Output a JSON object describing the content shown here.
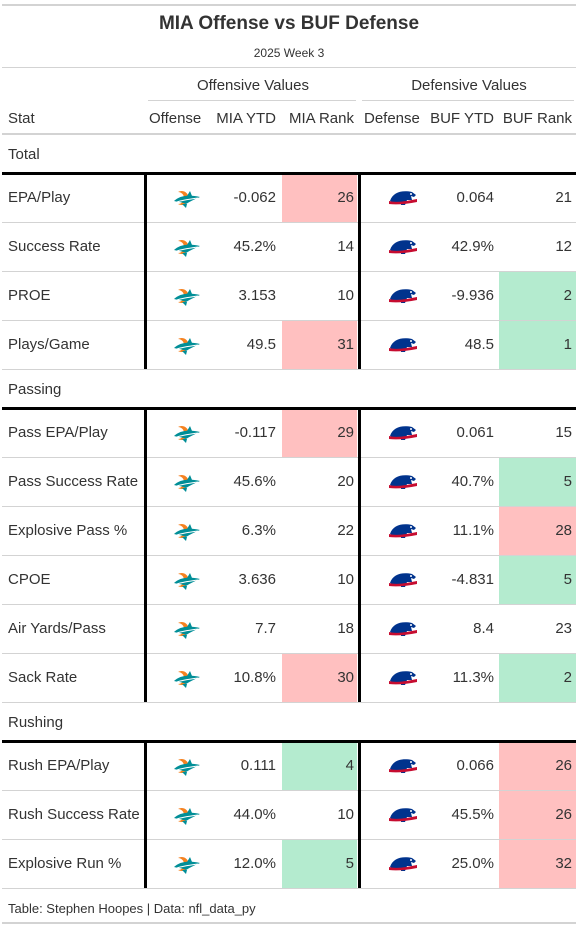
{
  "title": "MIA Offense vs BUF Defense",
  "subtitle": "2025 Week 3",
  "spanners": {
    "offense": "Offensive Values",
    "defense": "Defensive Values"
  },
  "columns": {
    "stat": "Stat",
    "offense": "Offense",
    "off_ytd": "MIA YTD",
    "off_rank": "MIA Rank",
    "defense": "Defense",
    "def_ytd": "BUF YTD",
    "def_rank": "BUF Rank"
  },
  "colors": {
    "bad": "#ffc0c0",
    "good": "#b4ebcf",
    "border": "#000000"
  },
  "logos": {
    "offense": "dolphins-logo",
    "defense": "bills-logo"
  },
  "groups": [
    {
      "label": "Total",
      "rows": [
        {
          "stat": "EPA/Play",
          "off_ytd": "-0.062",
          "off_rank": "26",
          "off_hl": "bad",
          "def_ytd": "0.064",
          "def_rank": "21",
          "def_hl": ""
        },
        {
          "stat": "Success Rate",
          "off_ytd": "45.2%",
          "off_rank": "14",
          "off_hl": "",
          "def_ytd": "42.9%",
          "def_rank": "12",
          "def_hl": ""
        },
        {
          "stat": "PROE",
          "off_ytd": "3.153",
          "off_rank": "10",
          "off_hl": "",
          "def_ytd": "-9.936",
          "def_rank": "2",
          "def_hl": "good"
        },
        {
          "stat": "Plays/Game",
          "off_ytd": "49.5",
          "off_rank": "31",
          "off_hl": "bad",
          "def_ytd": "48.5",
          "def_rank": "1",
          "def_hl": "good"
        }
      ]
    },
    {
      "label": "Passing",
      "rows": [
        {
          "stat": "Pass EPA/Play",
          "off_ytd": "-0.117",
          "off_rank": "29",
          "off_hl": "bad",
          "def_ytd": "0.061",
          "def_rank": "15",
          "def_hl": ""
        },
        {
          "stat": "Pass Success Rate",
          "off_ytd": "45.6%",
          "off_rank": "20",
          "off_hl": "",
          "def_ytd": "40.7%",
          "def_rank": "5",
          "def_hl": "good"
        },
        {
          "stat": "Explosive Pass %",
          "off_ytd": "6.3%",
          "off_rank": "22",
          "off_hl": "",
          "def_ytd": "11.1%",
          "def_rank": "28",
          "def_hl": "bad"
        },
        {
          "stat": "CPOE",
          "off_ytd": "3.636",
          "off_rank": "10",
          "off_hl": "",
          "def_ytd": "-4.831",
          "def_rank": "5",
          "def_hl": "good"
        },
        {
          "stat": "Air Yards/Pass",
          "off_ytd": "7.7",
          "off_rank": "18",
          "off_hl": "",
          "def_ytd": "8.4",
          "def_rank": "23",
          "def_hl": ""
        },
        {
          "stat": "Sack Rate",
          "off_ytd": "10.8%",
          "off_rank": "30",
          "off_hl": "bad",
          "def_ytd": "11.3%",
          "def_rank": "2",
          "def_hl": "good"
        }
      ]
    },
    {
      "label": "Rushing",
      "rows": [
        {
          "stat": "Rush EPA/Play",
          "off_ytd": "0.111",
          "off_rank": "4",
          "off_hl": "good",
          "def_ytd": "0.066",
          "def_rank": "26",
          "def_hl": "bad"
        },
        {
          "stat": "Rush Success Rate",
          "off_ytd": "44.0%",
          "off_rank": "10",
          "off_hl": "",
          "def_ytd": "45.5%",
          "def_rank": "26",
          "def_hl": "bad"
        },
        {
          "stat": "Explosive Run %",
          "off_ytd": "12.0%",
          "off_rank": "5",
          "off_hl": "good",
          "def_ytd": "25.0%",
          "def_rank": "32",
          "def_hl": "bad"
        }
      ]
    }
  ],
  "footer": "Table: Stephen Hoopes | Data: nfl_data_py"
}
